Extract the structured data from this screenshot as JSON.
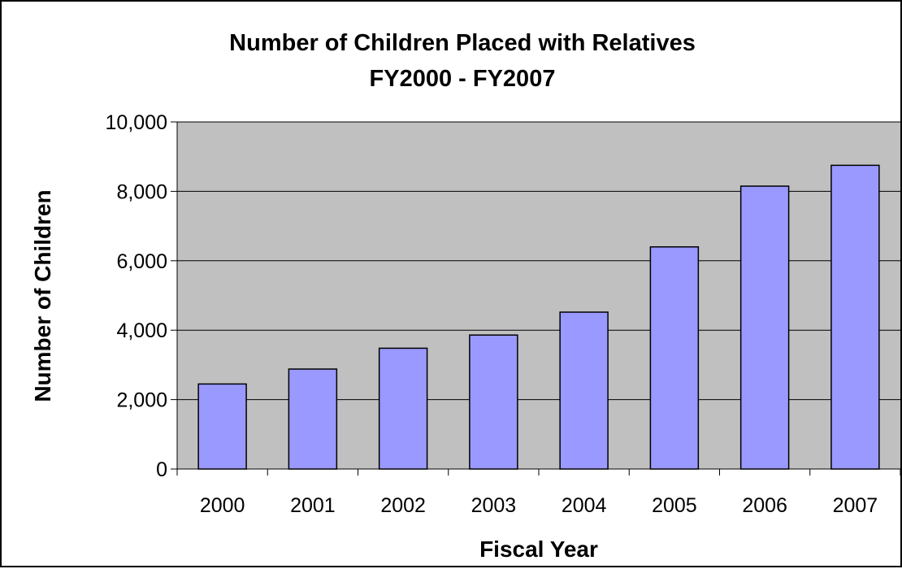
{
  "chart_data": {
    "type": "bar",
    "title": "Number of Children Placed with Relatives",
    "subtitle": "FY2000 - FY2007",
    "xlabel": "Fiscal Year",
    "ylabel": "Number of Children",
    "categories": [
      "2000",
      "2001",
      "2002",
      "2003",
      "2004",
      "2005",
      "2006",
      "2007"
    ],
    "values": [
      2450,
      2880,
      3480,
      3860,
      4520,
      6400,
      8150,
      8750
    ],
    "ylim": [
      0,
      10000
    ],
    "yticks": [
      0,
      2000,
      4000,
      6000,
      8000,
      10000
    ],
    "ytick_labels": [
      "0",
      "2,000",
      "4,000",
      "6,000",
      "8,000",
      "10,000"
    ],
    "grid": true,
    "legend": "none",
    "colors": {
      "bar_fill": "#9999ff",
      "bar_stroke": "#000000",
      "plot_background": "#c0c0c0",
      "gridline": "#000000"
    }
  }
}
